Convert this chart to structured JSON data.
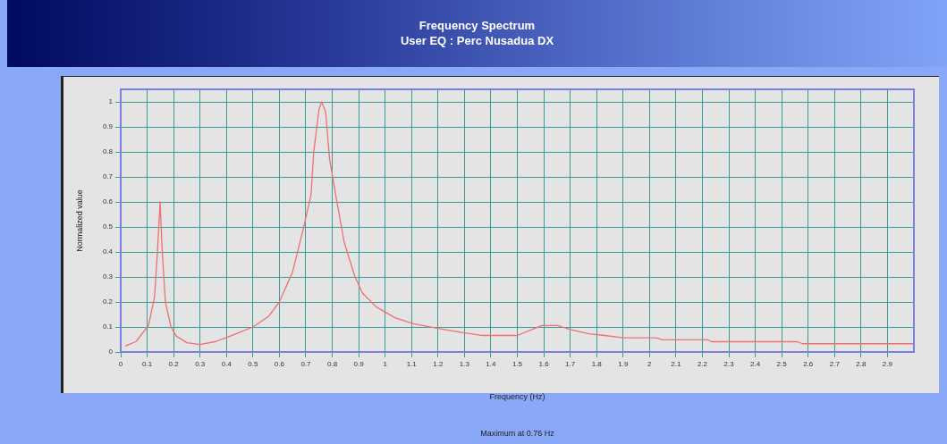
{
  "chart_data": {
    "type": "line",
    "title": "Frequency Spectrum",
    "subtitle": "User EQ : Perc Nusadua DX",
    "xlabel": "Frequency (Hz)",
    "ylabel": "Normalized value",
    "annotations": [
      "Maximum at 0.76 Hz"
    ],
    "x": [
      0.017,
      0.058,
      0.105,
      0.128,
      0.14,
      0.149,
      0.156,
      0.169,
      0.19,
      0.21,
      0.25,
      0.3,
      0.36,
      0.43,
      0.5,
      0.56,
      0.6,
      0.65,
      0.69,
      0.72,
      0.73,
      0.75,
      0.76,
      0.775,
      0.79,
      0.816,
      0.845,
      0.886,
      0.915,
      0.967,
      1.037,
      1.107,
      1.2,
      1.29,
      1.37,
      1.5,
      1.593,
      1.653,
      1.7,
      1.77,
      1.83,
      1.9,
      2.025,
      2.05,
      2.22,
      2.235,
      2.56,
      2.578,
      2.997
    ],
    "series": [
      {
        "color": "#f07070",
        "values": [
          0.024,
          0.042,
          0.106,
          0.22,
          0.42,
          0.6,
          0.42,
          0.2,
          0.1,
          0.064,
          0.037,
          0.03,
          0.042,
          0.07,
          0.1,
          0.143,
          0.2,
          0.32,
          0.49,
          0.63,
          0.8,
          0.97,
          1.0,
          0.96,
          0.77,
          0.61,
          0.44,
          0.3,
          0.235,
          0.18,
          0.137,
          0.113,
          0.094,
          0.078,
          0.066,
          0.066,
          0.106,
          0.106,
          0.09,
          0.073,
          0.066,
          0.057,
          0.057,
          0.049,
          0.049,
          0.041,
          0.041,
          0.033,
          0.033
        ]
      }
    ],
    "xlim": [
      0,
      3
    ],
    "xticks": [
      0,
      0.1,
      0.2,
      0.3,
      0.4,
      0.5,
      0.6,
      0.7,
      0.8,
      0.9,
      1,
      1.1,
      1.2,
      1.3,
      1.4,
      1.5,
      1.6,
      1.7,
      1.8,
      1.9,
      2,
      2.1,
      2.2,
      2.3,
      2.4,
      2.5,
      2.6,
      2.7,
      2.8,
      2.9
    ],
    "ylim": [
      0,
      1.05
    ],
    "yticks": [
      0,
      0.1,
      0.2,
      0.3,
      0.4,
      0.5,
      0.6,
      0.7,
      0.8,
      0.9,
      1
    ],
    "grid": true,
    "legend": false,
    "marker": "none",
    "line_style": "solid"
  }
}
